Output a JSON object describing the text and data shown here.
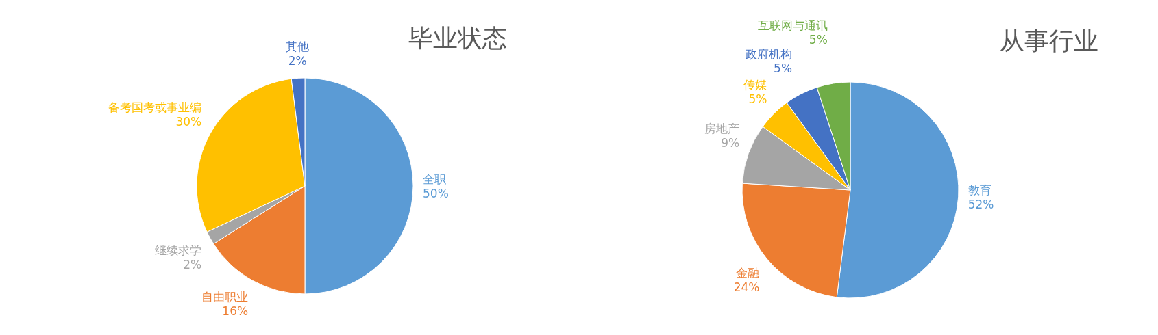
{
  "chart_data": [
    {
      "type": "pie",
      "title": "毕业状态",
      "categories": [
        "全职",
        "自由职业",
        "继续求学",
        "备考国考或事业编",
        "其他"
      ],
      "values": [
        50,
        16,
        2,
        30,
        2
      ],
      "value_labels": [
        "50%",
        "16%",
        "2%",
        "30%",
        "2%"
      ],
      "colors": [
        "#5b9bd5",
        "#ed7d31",
        "#a5a5a5",
        "#ffc000",
        "#4472c4"
      ]
    },
    {
      "type": "pie",
      "title": "从事行业",
      "categories": [
        "教育",
        "金融",
        "房地产",
        "传媒",
        "政府机构",
        "互联网与通讯"
      ],
      "values": [
        52,
        24,
        9,
        5,
        5,
        5
      ],
      "value_labels": [
        "52%",
        "24%",
        "9%",
        "5%",
        "5%",
        "5%"
      ],
      "colors": [
        "#5b9bd5",
        "#ed7d31",
        "#a5a5a5",
        "#ffc000",
        "#4472c4",
        "#70ad47"
      ]
    }
  ]
}
